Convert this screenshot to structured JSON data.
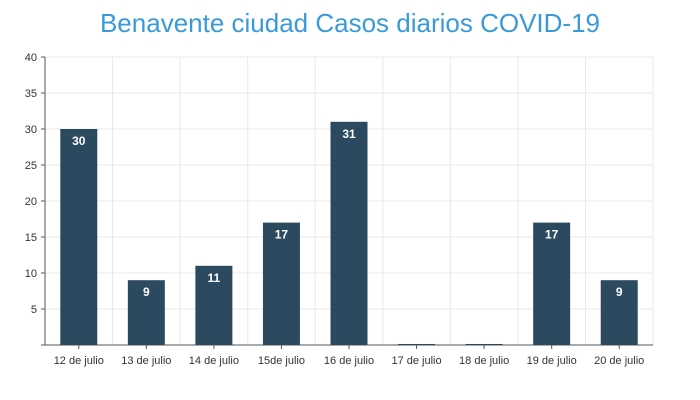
{
  "chart_data": {
    "type": "bar",
    "title": "Benavente ciudad Casos diarios COVID-19",
    "categories": [
      "12 de julio",
      "13 de julio",
      "14 de julio",
      "15de julio",
      "16 de julio",
      "17 de julio",
      "18 de julio",
      "19 de julio",
      "20 de julio"
    ],
    "values": [
      30,
      9,
      11,
      17,
      31,
      0,
      0,
      17,
      9
    ],
    "data_labels": [
      "30",
      "9",
      "11",
      "17",
      "31",
      "",
      "",
      "17",
      "9"
    ],
    "ylim": [
      0,
      40
    ],
    "yticks": [
      0,
      5,
      10,
      15,
      20,
      25,
      30,
      35,
      40
    ],
    "ytick_labels": [
      "",
      "5",
      "10",
      "15",
      "20",
      "25",
      "30",
      "35",
      "40"
    ],
    "xlabel": "",
    "ylabel": "",
    "grid": true,
    "bar_color": "#2b4a5f",
    "label_color": "#ffffff",
    "title_color": "#3a9ad9"
  }
}
